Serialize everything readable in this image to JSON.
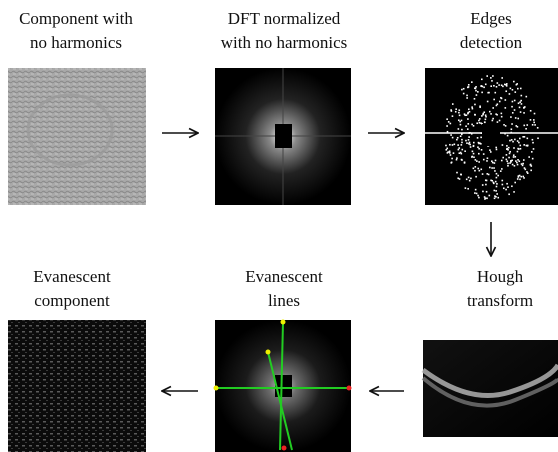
{
  "nodes": [
    {
      "label": [
        "Component with",
        "no harmonics"
      ]
    },
    {
      "label": [
        "DFT normalized",
        "with no harmonics"
      ]
    },
    {
      "label": [
        "Edges",
        "detection"
      ]
    },
    {
      "label": [
        "Hough",
        "transform"
      ]
    },
    {
      "label": [
        "Evanescent",
        "lines"
      ]
    },
    {
      "label": [
        "Evanescent",
        "component"
      ]
    }
  ]
}
